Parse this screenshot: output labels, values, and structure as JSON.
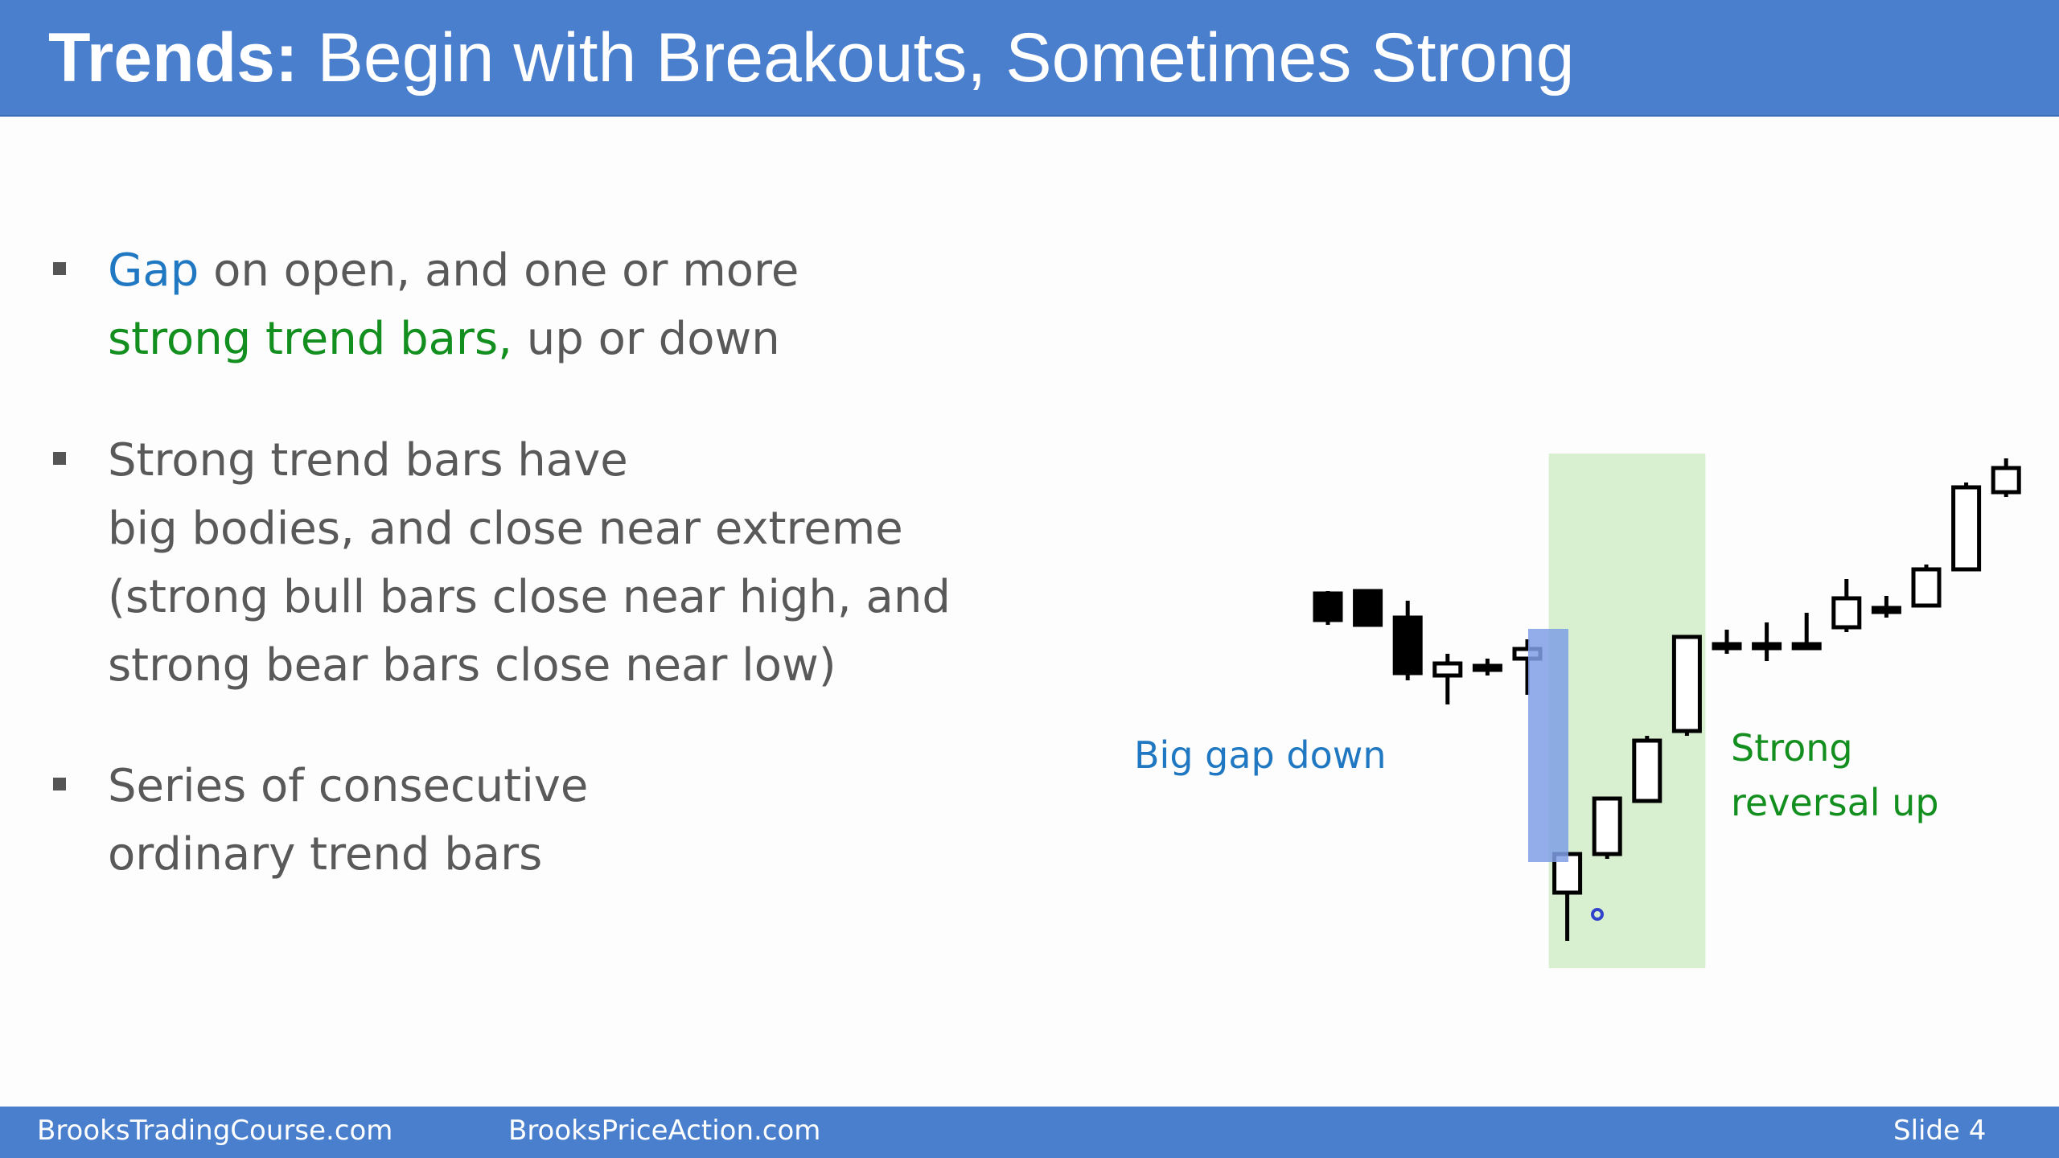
{
  "header": {
    "title_bold": "Trends:",
    "title_rest": "Begin with Breakouts, Sometimes Strong"
  },
  "bullets": [
    {
      "line1_highlight": "Gap",
      "line1_rest": " on open, and one or more",
      "line2_highlight": "strong trend bars,",
      "line2_rest": " up or down"
    },
    {
      "lines": [
        "Strong trend bars have",
        "big bodies, and close near extreme",
        "(strong bull bars close near high, and",
        "strong bear bars close near low)"
      ]
    },
    {
      "lines": [
        "Series of consecutive",
        "ordinary trend bars"
      ]
    }
  ],
  "annotations": {
    "gap_label": "Big gap down",
    "reversal_line1": "Strong",
    "reversal_line2": "reversal up"
  },
  "colors": {
    "header_bg": "#4a7fcd",
    "highlight_blue": "#1f78c1",
    "highlight_green": "#128f1e",
    "gap_box": "#7f9fe6",
    "reversal_zone": "#d8f0d0"
  },
  "chart_data": {
    "type": "candlestick",
    "note_bars_in_order": "open/high/low/close in price units read off slide (higher = up)",
    "bars": [
      {
        "open": 870,
        "high": 875,
        "low": 805,
        "close": 815
      },
      {
        "open": 875,
        "high": 875,
        "low": 810,
        "close": 805
      },
      {
        "open": 820,
        "high": 855,
        "low": 690,
        "close": 705
      },
      {
        "open": 700,
        "high": 745,
        "low": 640,
        "close": 725
      },
      {
        "open": 715,
        "high": 735,
        "low": 700,
        "close": 720
      },
      {
        "open": 735,
        "high": 775,
        "low": 660,
        "close": 755
      },
      {
        "open": 250,
        "high": 330,
        "low": 150,
        "close": 330
      },
      {
        "open": 330,
        "high": 445,
        "low": 320,
        "close": 445
      },
      {
        "open": 440,
        "high": 575,
        "low": 440,
        "close": 565
      },
      {
        "open": 585,
        "high": 780,
        "low": 575,
        "close": 780
      },
      {
        "open": 760,
        "high": 795,
        "low": 745,
        "close": 765
      },
      {
        "open": 760,
        "high": 810,
        "low": 730,
        "close": 765
      },
      {
        "open": 765,
        "high": 830,
        "low": 760,
        "close": 765
      },
      {
        "open": 800,
        "high": 900,
        "low": 790,
        "close": 860
      },
      {
        "open": 835,
        "high": 865,
        "low": 820,
        "close": 840
      },
      {
        "open": 845,
        "high": 930,
        "low": 845,
        "close": 920
      },
      {
        "open": 920,
        "high": 1100,
        "low": 920,
        "close": 1090
      },
      {
        "open": 1080,
        "high": 1150,
        "low": 1070,
        "close": 1130
      }
    ],
    "gap_box": {
      "from": 1170,
      "to": 250
    },
    "reversal_zone": {
      "from_bar": 6,
      "to_bar": 9
    }
  },
  "footer": {
    "left": "BrooksTradingCourse.com",
    "middle": "BrooksPriceAction.com",
    "right": "Slide  4"
  }
}
